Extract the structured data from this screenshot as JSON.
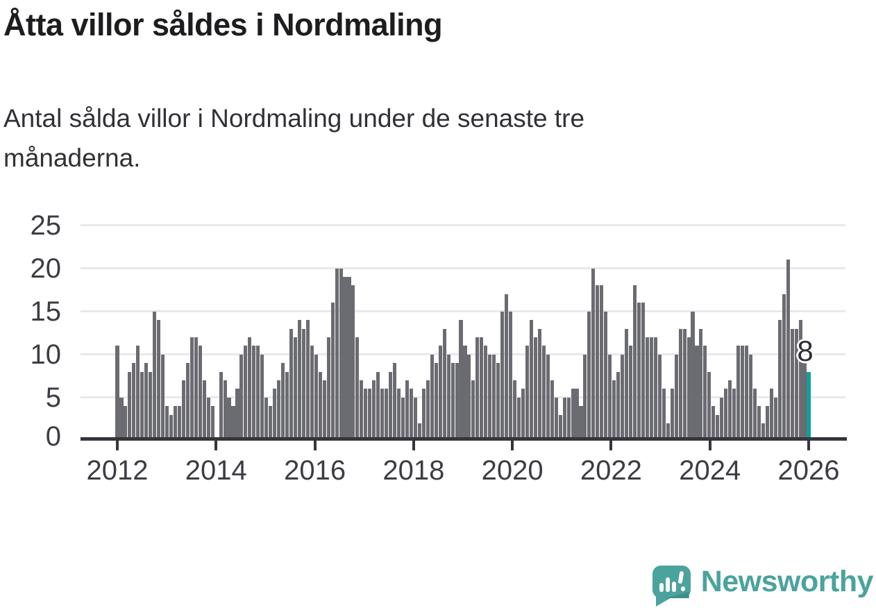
{
  "chart_data": {
    "type": "bar",
    "title": "Åtta villor såldes i Nordmaling",
    "subtitle_lines": [
      "Antal sålda villor i Nordmaling under de senaste tre",
      "månaderna."
    ],
    "xlabel": "",
    "ylabel": "",
    "ylim": [
      0,
      25
    ],
    "y_ticks": [
      0,
      5,
      10,
      15,
      20,
      25
    ],
    "x_tick_labels": [
      "2012",
      "2014",
      "2016",
      "2018",
      "2020",
      "2022",
      "2024",
      "2026"
    ],
    "grid": "horizontal",
    "legend": "none",
    "bar_color": "#6b6b72",
    "highlight_color": "#0fa09a",
    "annotation": {
      "text": "8",
      "target": "last-bar"
    },
    "values": [
      11,
      5,
      4,
      8,
      9,
      11,
      8,
      9,
      8,
      15,
      14,
      10,
      4,
      3,
      4,
      4,
      7,
      9,
      12,
      12,
      11,
      7,
      5,
      4,
      0,
      8,
      7,
      5,
      4,
      6,
      10,
      11,
      12,
      11,
      11,
      10,
      5,
      4,
      6,
      7,
      9,
      8,
      13,
      12,
      14,
      13,
      14,
      11,
      10,
      8,
      7,
      12,
      16,
      20,
      20,
      19,
      19,
      18,
      12,
      7,
      6,
      6,
      7,
      8,
      6,
      6,
      8,
      9,
      6,
      5,
      7,
      6,
      5,
      2,
      6,
      7,
      10,
      9,
      11,
      13,
      10,
      9,
      9,
      14,
      11,
      10,
      7,
      12,
      12,
      11,
      10,
      10,
      9,
      15,
      17,
      15,
      7,
      5,
      6,
      11,
      14,
      12,
      13,
      11,
      10,
      7,
      5,
      3,
      5,
      5,
      6,
      6,
      4,
      10,
      15,
      20,
      18,
      18,
      15,
      10,
      7,
      8,
      10,
      13,
      11,
      18,
      16,
      16,
      12,
      12,
      12,
      10,
      6,
      2,
      6,
      10,
      13,
      13,
      12,
      15,
      11,
      13,
      11,
      8,
      4,
      3,
      5,
      6,
      7,
      6,
      11,
      11,
      11,
      10,
      6,
      4,
      2,
      4,
      6,
      5,
      14,
      17,
      21,
      13,
      13,
      14,
      9,
      8
    ]
  },
  "branding": {
    "name": "Newsworthy",
    "color": "#4aa39d",
    "icon": "newsworthy-speech-bubble-chart-icon"
  }
}
